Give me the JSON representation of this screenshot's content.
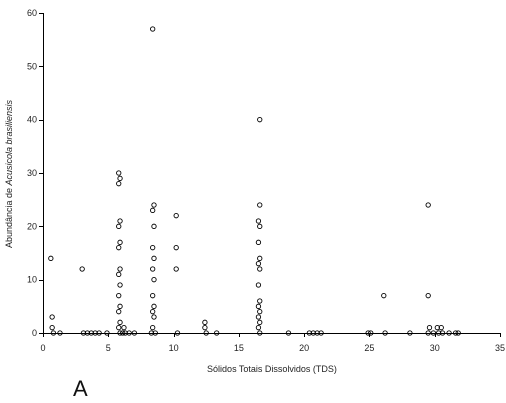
{
  "chart_data": {
    "type": "scatter",
    "xlabel": "Sólidos Totais Dissolvidos (TDS)",
    "ylabel_prefix": "Abundância de ",
    "ylabel_species": "Acusicola brasiliensis",
    "panel_label": "A",
    "xlim": [
      0,
      35
    ],
    "ylim": [
      0,
      60
    ],
    "x_ticks": [
      0,
      5,
      10,
      15,
      20,
      25,
      30,
      35
    ],
    "y_ticks": [
      0,
      10,
      20,
      30,
      40,
      50,
      60
    ],
    "grid": false,
    "marker": "open-circle",
    "series": [
      {
        "points": [
          [
            0.6,
            14
          ],
          [
            0.7,
            3
          ],
          [
            0.7,
            1
          ],
          [
            0.8,
            0
          ],
          [
            1.3,
            0
          ],
          [
            3.0,
            12
          ],
          [
            3.1,
            0
          ],
          [
            3.4,
            0
          ],
          [
            3.7,
            0
          ],
          [
            4.0,
            0
          ],
          [
            4.3,
            0
          ],
          [
            4.9,
            0
          ],
          [
            5.8,
            30
          ],
          [
            5.9,
            29
          ],
          [
            5.8,
            28
          ],
          [
            5.9,
            21
          ],
          [
            5.8,
            20
          ],
          [
            5.9,
            17
          ],
          [
            5.8,
            16
          ],
          [
            5.9,
            12
          ],
          [
            5.8,
            11
          ],
          [
            5.9,
            9
          ],
          [
            5.8,
            7
          ],
          [
            5.9,
            5
          ],
          [
            5.8,
            4
          ],
          [
            5.9,
            2
          ],
          [
            5.8,
            1
          ],
          [
            5.9,
            0
          ],
          [
            6.1,
            0
          ],
          [
            6.2,
            1
          ],
          [
            6.3,
            0
          ],
          [
            6.6,
            0
          ],
          [
            7.0,
            0
          ],
          [
            8.4,
            57
          ],
          [
            8.5,
            24
          ],
          [
            8.4,
            23
          ],
          [
            8.5,
            20
          ],
          [
            8.4,
            16
          ],
          [
            8.5,
            14
          ],
          [
            8.4,
            12
          ],
          [
            8.5,
            10
          ],
          [
            8.4,
            7
          ],
          [
            8.5,
            5
          ],
          [
            8.4,
            4
          ],
          [
            8.5,
            3
          ],
          [
            8.4,
            1
          ],
          [
            8.3,
            0
          ],
          [
            8.6,
            0
          ],
          [
            10.2,
            22
          ],
          [
            10.2,
            16
          ],
          [
            10.2,
            12
          ],
          [
            10.3,
            0
          ],
          [
            12.4,
            2
          ],
          [
            12.4,
            1
          ],
          [
            12.5,
            0
          ],
          [
            13.3,
            0
          ],
          [
            16.6,
            40
          ],
          [
            16.6,
            24
          ],
          [
            16.5,
            21
          ],
          [
            16.6,
            20
          ],
          [
            16.5,
            17
          ],
          [
            16.6,
            14
          ],
          [
            16.5,
            13
          ],
          [
            16.6,
            12
          ],
          [
            16.5,
            9
          ],
          [
            16.6,
            6
          ],
          [
            16.5,
            5
          ],
          [
            16.6,
            4
          ],
          [
            16.5,
            3
          ],
          [
            16.6,
            2
          ],
          [
            16.5,
            1
          ],
          [
            16.6,
            0
          ],
          [
            18.8,
            0
          ],
          [
            20.4,
            0
          ],
          [
            20.7,
            0
          ],
          [
            21.0,
            0
          ],
          [
            21.3,
            0
          ],
          [
            24.9,
            0
          ],
          [
            25.1,
            0
          ],
          [
            26.1,
            7
          ],
          [
            26.2,
            0
          ],
          [
            28.1,
            0
          ],
          [
            29.5,
            24
          ],
          [
            29.5,
            7
          ],
          [
            29.6,
            1
          ],
          [
            29.5,
            0
          ],
          [
            29.9,
            0
          ],
          [
            30.2,
            1
          ],
          [
            30.3,
            0
          ],
          [
            30.5,
            1
          ],
          [
            30.6,
            0
          ],
          [
            31.1,
            0
          ],
          [
            31.6,
            0
          ],
          [
            31.8,
            0
          ]
        ]
      }
    ]
  }
}
